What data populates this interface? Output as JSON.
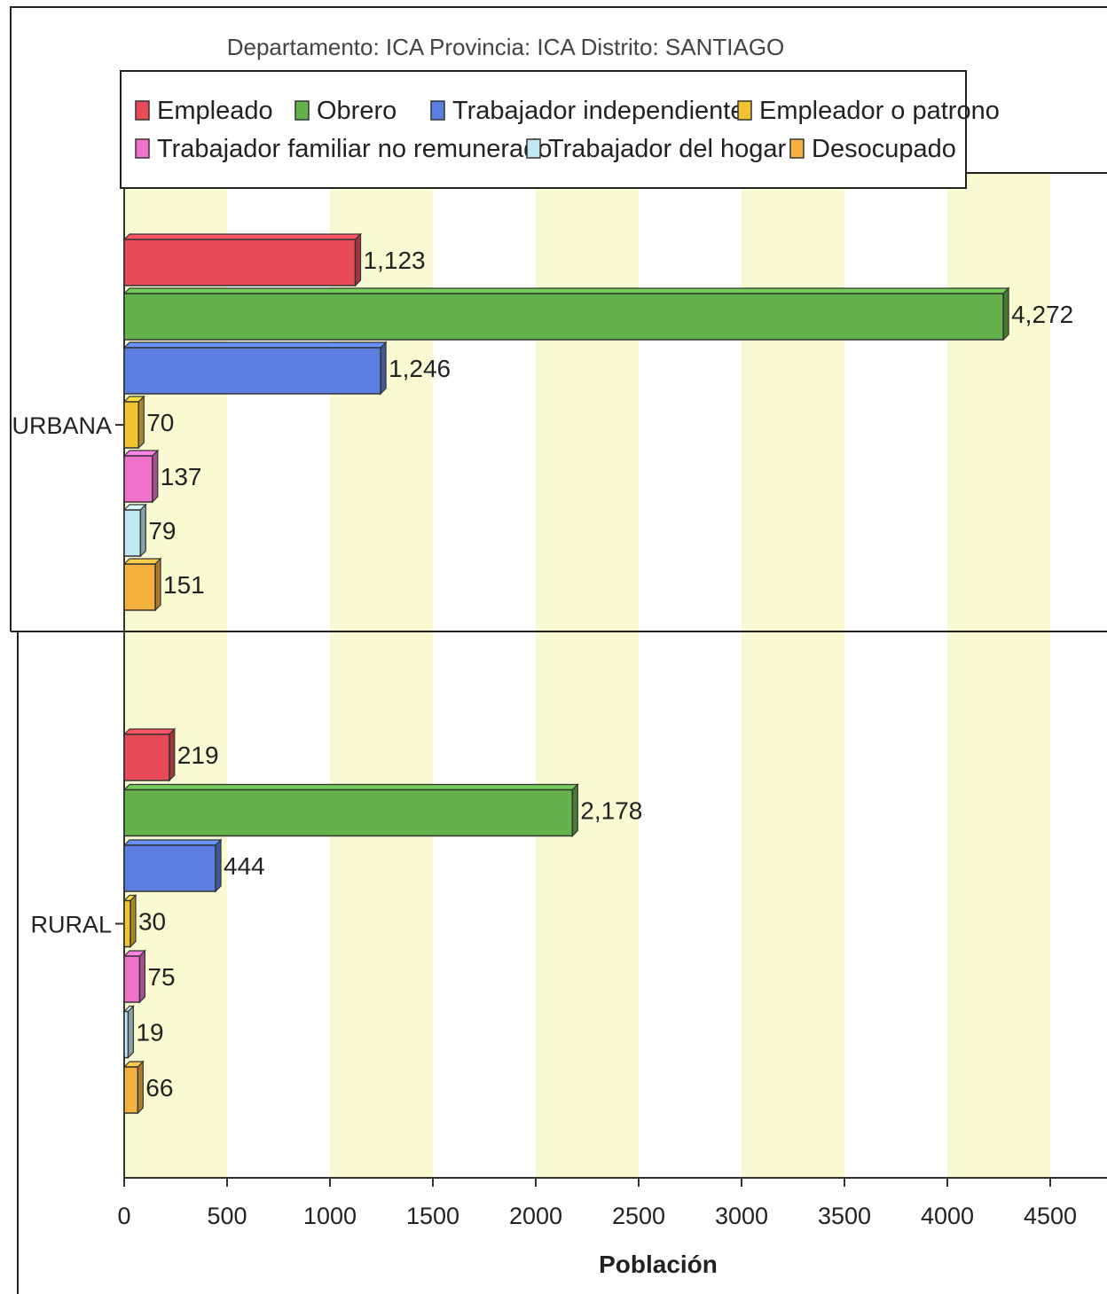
{
  "subtitle": "Departamento: ICA    Provincia: ICA    Distrito: SANTIAGO",
  "colors": {
    "Empleado": "#e84a57",
    "Obrero": "#63b24b",
    "Trabajador independiente": "#5b7fe0",
    "Empleador o patrono": "#f0c330",
    "Trabajador familiar no remunerado": "#ee72c9",
    "Trabajador del hogar": "#bfe9f1",
    "Desocupado": "#f5b13d",
    "band_yellow": "#fafad2",
    "band_white": "#ffffff"
  },
  "chart_data": {
    "type": "bar",
    "orientation": "horizontal",
    "subtitle": "Departamento: ICA    Provincia: ICA    Distrito: SANTIAGO",
    "categories": [
      "URBANA",
      "RURAL"
    ],
    "series": [
      {
        "name": "Empleado",
        "values": [
          1123,
          219
        ]
      },
      {
        "name": "Obrero",
        "values": [
          4272,
          2178
        ]
      },
      {
        "name": "Trabajador independiente",
        "values": [
          1246,
          444
        ]
      },
      {
        "name": "Empleador o patrono",
        "values": [
          70,
          30
        ]
      },
      {
        "name": "Trabajador familiar no remunerado",
        "values": [
          137,
          75
        ]
      },
      {
        "name": "Trabajador del hogar",
        "values": [
          79,
          19
        ]
      },
      {
        "name": "Desocupado",
        "values": [
          151,
          66
        ]
      }
    ],
    "value_labels": [
      [
        "1,123",
        "4,272",
        "1,246",
        "70",
        "137",
        "79",
        "151"
      ],
      [
        "219",
        "2,178",
        "444",
        "30",
        "75",
        "19",
        "66"
      ]
    ],
    "xlabel": "Población",
    "xlim": [
      0,
      4500
    ],
    "xticks": [
      0,
      500,
      1000,
      1500,
      2000,
      2500,
      3000,
      3500,
      4000,
      4500
    ],
    "legend_position": "top",
    "grid": "alternating vertical bands"
  }
}
